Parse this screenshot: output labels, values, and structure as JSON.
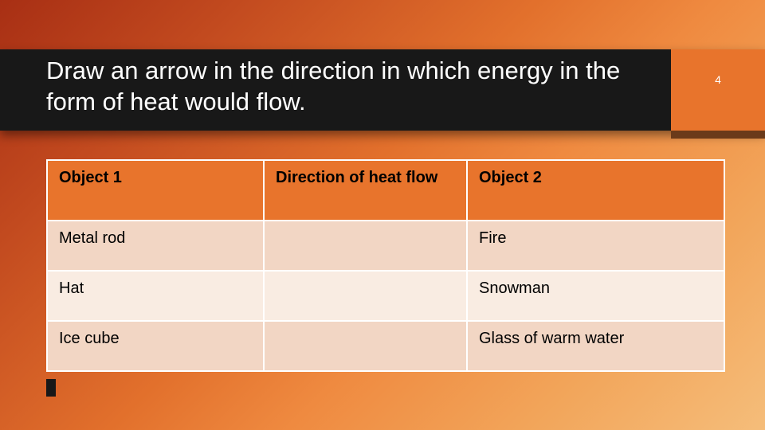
{
  "slide": {
    "title": "Draw an arrow in the direction in which energy in the form of heat would flow.",
    "page_number": "4"
  },
  "theme": {
    "header_band_color": "#181818",
    "accent_box_color": "#e8742c",
    "accent_shadow_color": "#6b3a1a",
    "title_color": "#ffffff",
    "page_num_color": "#ffffff",
    "bg_gradient_start": "#a82f14",
    "bg_gradient_end": "#f5bd7a"
  },
  "table": {
    "header_bg": "#e8742c",
    "row_band_a": "#f2d6c4",
    "row_band_b": "#f9ece2",
    "border_color": "#ffffff",
    "font_size_pt": 15,
    "columns": [
      {
        "label": "Object 1",
        "width_pct": 32
      },
      {
        "label": "Direction of heat flow",
        "width_pct": 30
      },
      {
        "label": "Object 2",
        "width_pct": 38
      }
    ],
    "rows": [
      {
        "object1": "Metal rod",
        "direction": "",
        "object2": "Fire"
      },
      {
        "object1": "Hat",
        "direction": "",
        "object2": "Snowman"
      },
      {
        "object1": "Ice cube",
        "direction": "",
        "object2": "Glass of warm water"
      }
    ]
  }
}
